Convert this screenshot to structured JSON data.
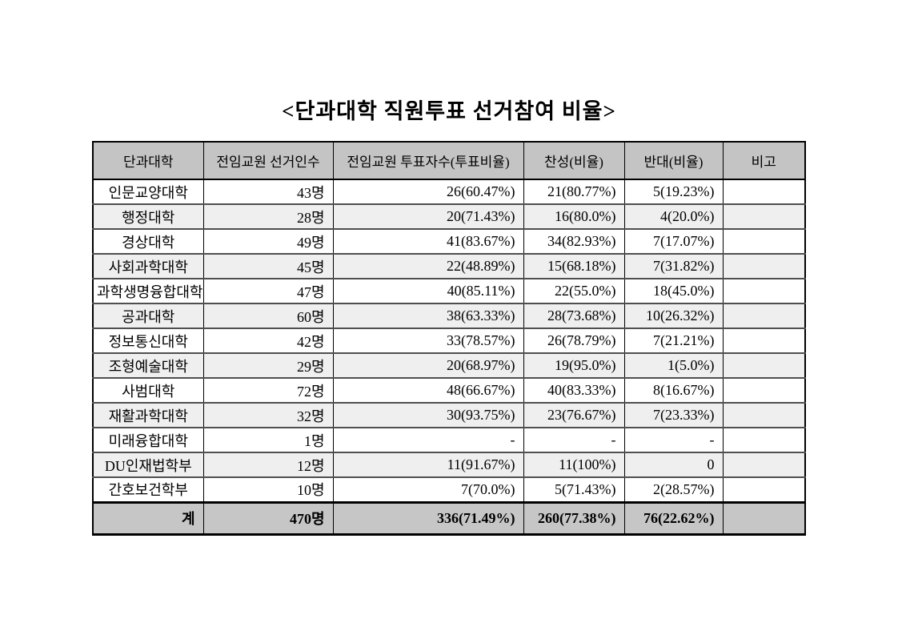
{
  "document": {
    "title": "<단과대학 직원투표 선거참여 비율>"
  },
  "table": {
    "headers": [
      "단과대학",
      "전임교원 선거인수",
      "전임교원 투표자수(투표비율)",
      "찬성(비율)",
      "반대(비율)",
      "비고"
    ],
    "rows": [
      [
        "인문교양대학",
        "43명",
        "26(60.47%)",
        "21(80.77%)",
        "5(19.23%)",
        ""
      ],
      [
        "행정대학",
        "28명",
        "20(71.43%)",
        "16(80.0%)",
        "4(20.0%)",
        ""
      ],
      [
        "경상대학",
        "49명",
        "41(83.67%)",
        "34(82.93%)",
        "7(17.07%)",
        ""
      ],
      [
        "사회과학대학",
        "45명",
        "22(48.89%)",
        "15(68.18%)",
        "7(31.82%)",
        ""
      ],
      [
        "과학생명융합대학",
        "47명",
        "40(85.11%)",
        "22(55.0%)",
        "18(45.0%)",
        ""
      ],
      [
        "공과대학",
        "60명",
        "38(63.33%)",
        "28(73.68%)",
        "10(26.32%)",
        ""
      ],
      [
        "정보통신대학",
        "42명",
        "33(78.57%)",
        "26(78.79%)",
        "7(21.21%)",
        ""
      ],
      [
        "조형예술대학",
        "29명",
        "20(68.97%)",
        "19(95.0%)",
        "1(5.0%)",
        ""
      ],
      [
        "사범대학",
        "72명",
        "48(66.67%)",
        "40(83.33%)",
        "8(16.67%)",
        ""
      ],
      [
        "재활과학대학",
        "32명",
        "30(93.75%)",
        "23(76.67%)",
        "7(23.33%)",
        ""
      ],
      [
        "미래융합대학",
        "1명",
        "-",
        "-",
        "-",
        ""
      ],
      [
        "DU인재법학부",
        "12명",
        "11(91.67%)",
        "11(100%)",
        "0",
        ""
      ],
      [
        "간호보건학부",
        "10명",
        "7(70.0%)",
        "5(71.43%)",
        "2(28.57%)",
        ""
      ]
    ],
    "total": [
      "계",
      "470명",
      "336(71.49%)",
      "260(77.38%)",
      "76(22.62%)",
      ""
    ]
  },
  "colors": {
    "header_bg": "#c4c4c4",
    "alt_row_bg": "#efefef",
    "total_row_bg": "#c6c6c6",
    "border": "#000000",
    "row_divider": "#4f4f4f",
    "page_bg": "#ffffff"
  }
}
